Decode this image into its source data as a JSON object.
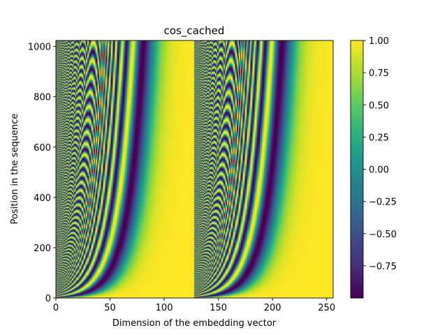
{
  "chart_data": {
    "type": "heatmap",
    "title": "cos_cached",
    "xlabel": "Dimension of the embedding vector",
    "ylabel": "Position in the sequence",
    "x_range": [
      0,
      256
    ],
    "y_range": [
      0,
      1024
    ],
    "x_ticks": [
      0,
      50,
      100,
      150,
      200,
      250
    ],
    "x_tick_labels": [
      "0",
      "50",
      "100",
      "150",
      "200",
      "250"
    ],
    "y_ticks": [
      0,
      200,
      400,
      600,
      800,
      1000
    ],
    "y_tick_labels": [
      "0",
      "200",
      "400",
      "600",
      "800",
      "1000"
    ],
    "function": "cos(position * 10000^(-2*(dim mod 128)/256))",
    "half_dim": 128,
    "base": 10000,
    "colormap": "viridis",
    "colorbar": {
      "range": [
        -1.0,
        1.0
      ],
      "ticks": [
        1.0,
        0.75,
        0.5,
        0.25,
        0.0,
        -0.25,
        -0.5,
        -0.75
      ],
      "tick_labels": [
        "1.00",
        "0.75",
        "0.50",
        "0.25",
        "0.00",
        "−0.25",
        "−0.50",
        "−0.75"
      ]
    },
    "colors": {
      "low": "#440154",
      "mid": "#21918c",
      "high": "#fde725"
    }
  }
}
